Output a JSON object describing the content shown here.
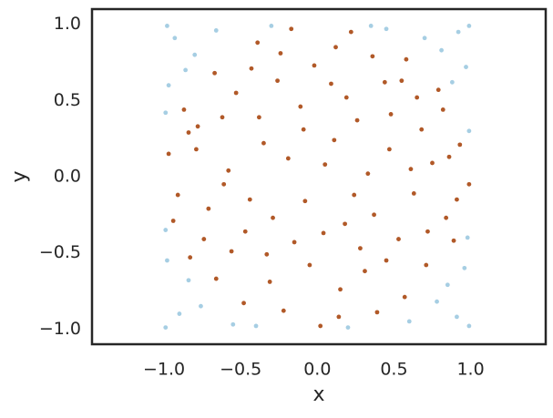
{
  "chart_data": {
    "type": "scatter",
    "x_label": "x",
    "y_label": "y",
    "xlim": [
      -1.47,
      1.49
    ],
    "ylim": [
      -1.1,
      1.1
    ],
    "xticks": [
      {
        "value": -1.0,
        "label": "−1.0"
      },
      {
        "value": -0.5,
        "label": "−0.5"
      },
      {
        "value": 0.0,
        "label": "0.0"
      },
      {
        "value": 0.5,
        "label": "0.5"
      },
      {
        "value": 1.0,
        "label": "1.0"
      }
    ],
    "yticks": [
      {
        "value": -1.0,
        "label": "−1.0"
      },
      {
        "value": -0.5,
        "label": "−0.5"
      },
      {
        "value": 0.0,
        "label": "0.0"
      },
      {
        "value": 0.5,
        "label": "0.5"
      },
      {
        "value": 1.0,
        "label": "1.0"
      }
    ],
    "series": [
      {
        "color": "#a6cee3",
        "x": [
          0.92,
          0.81,
          0.97,
          0.7,
          0.88,
          -0.93,
          -0.8,
          -0.97,
          -0.66,
          -0.86,
          -0.9,
          -0.76,
          -0.98,
          -0.55,
          -0.84,
          0.91,
          0.78,
          0.96,
          0.6,
          0.85,
          0.99,
          -0.99,
          0.99,
          -0.98,
          0.35,
          -0.4,
          0.99,
          -0.99,
          0.98,
          -0.99,
          0.45,
          -0.3,
          0.2
        ],
        "y": [
          0.95,
          0.83,
          0.72,
          0.91,
          0.62,
          0.91,
          0.8,
          0.6,
          0.96,
          0.7,
          -0.9,
          -0.85,
          -0.55,
          -0.97,
          -0.68,
          -0.92,
          -0.82,
          -0.6,
          -0.95,
          -0.71,
          0.99,
          -0.99,
          -0.98,
          0.99,
          0.99,
          -0.98,
          0.3,
          -0.35,
          -0.4,
          0.42,
          0.97,
          0.99,
          -0.99
        ]
      },
      {
        "color": "#b15928",
        "x": [
          0.12,
          -0.43,
          0.65,
          -0.78,
          0.31,
          -0.22,
          0.84,
          -0.56,
          0.05,
          0.47,
          -0.35,
          0.71,
          -0.91,
          0.18,
          -0.11,
          0.58,
          -0.67,
          0.93,
          -0.29,
          0.39,
          -0.05,
          0.26,
          -0.74,
          0.82,
          -0.48,
          0.63,
          -0.17,
          0.02,
          0.99,
          -0.97,
          0.44,
          -0.58,
          0.15,
          -0.39,
          0.75,
          -0.83,
          0.33,
          -0.08,
          0.53,
          -0.26,
          0.09,
          -0.62,
          0.89,
          -0.44,
          0.22,
          -0.15,
          0.68,
          -0.87,
          0.37,
          -0.71,
          0.11,
          -0.31,
          0.57,
          -0.53,
          0.79,
          -0.02,
          0.45,
          -0.94,
          0.28,
          -0.19,
          0.61,
          -0.38,
          0.14,
          -0.66,
          0.91,
          -0.09,
          0.48,
          -0.79,
          0.24,
          -0.47,
          0.72,
          -0.24,
          0.36,
          -0.61,
          0.04,
          -0.84,
          0.55,
          -0.33,
          0.19,
          0.86
        ],
        "y": [
          0.85,
          0.71,
          0.52,
          0.33,
          -0.62,
          -0.88,
          -0.27,
          -0.49,
          0.08,
          0.18,
          0.22,
          -0.58,
          -0.12,
          -0.31,
          0.46,
          0.77,
          0.68,
          0.21,
          -0.27,
          -0.89,
          -0.58,
          0.37,
          -0.41,
          0.44,
          -0.83,
          -0.11,
          0.97,
          -0.98,
          -0.05,
          0.15,
          0.62,
          0.04,
          -0.74,
          0.88,
          0.09,
          -0.53,
          0.02,
          -0.16,
          -0.41,
          0.63,
          0.61,
          0.39,
          -0.42,
          -0.15,
          0.95,
          -0.43,
          0.31,
          0.44,
          -0.25,
          -0.21,
          0.24,
          -0.69,
          -0.79,
          0.55,
          0.57,
          0.73,
          -0.55,
          -0.29,
          -0.47,
          0.12,
          0.05,
          0.39,
          -0.92,
          -0.67,
          -0.15,
          0.31,
          0.41,
          0.18,
          -0.12,
          -0.36,
          -0.36,
          0.81,
          0.79,
          -0.05,
          -0.37,
          0.29,
          0.63,
          -0.51,
          0.52,
          0.13
        ]
      }
    ]
  }
}
